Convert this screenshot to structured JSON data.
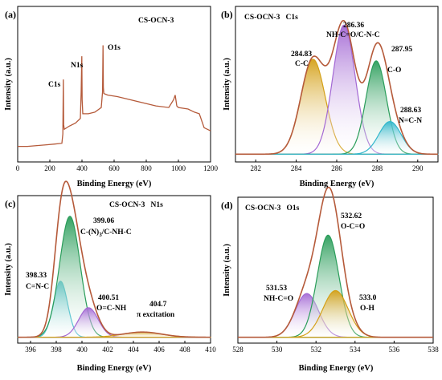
{
  "chart_data": [
    {
      "type": "line",
      "panel": "(a)",
      "title": "CS-OCN-3",
      "xlabel": "Binding Energy (eV)",
      "ylabel": "Intensity (a.u.)",
      "xlim": [
        0,
        1200
      ],
      "xticks": [
        0,
        200,
        400,
        600,
        800,
        1000,
        1200
      ],
      "ylim": [
        0,
        100
      ],
      "series": [
        {
          "color": "#b55a3a",
          "x": [
            0,
            60,
            120,
            180,
            230,
            275,
            281,
            284,
            286,
            290,
            320,
            360,
            390,
            395,
            399,
            401,
            405,
            440,
            480,
            520,
            528,
            531,
            533,
            536,
            560,
            620,
            700,
            780,
            860,
            940,
            970,
            980,
            990,
            1000,
            1060,
            1100,
            1130,
            1160,
            1200
          ],
          "y": [
            10,
            10,
            10.5,
            11,
            11.5,
            12,
            18,
            53,
            24,
            21,
            23,
            25,
            28,
            45,
            68,
            40,
            31,
            31,
            32,
            35,
            45,
            75,
            48,
            44,
            43,
            42,
            40,
            38,
            36,
            35,
            40,
            43,
            36,
            35,
            34,
            32,
            31,
            22,
            20
          ]
        }
      ],
      "annotations": [
        "C1s",
        "N1s",
        "O1s"
      ]
    },
    {
      "type": "area",
      "panel": "(b)",
      "title": "CS-OCN-3   C1s",
      "xlabel": "Binding Energy (eV)",
      "ylabel": "Intensity (a.u.)",
      "xlim": [
        281,
        291
      ],
      "xticks": [
        282,
        284,
        286,
        288,
        290
      ],
      "ylim": [
        0,
        100
      ],
      "baseline": 5,
      "envelope_color": "#b55a3a",
      "peaks": [
        {
          "center": 284.83,
          "height": 61,
          "sigma": 0.6,
          "color": "#d4a017",
          "labels": [
            "284.83",
            "C-C"
          ]
        },
        {
          "center": 286.36,
          "height": 83,
          "sigma": 0.55,
          "color": "#a368d4",
          "labels": [
            "286.36",
            "NH-C=O/C-N-C"
          ]
        },
        {
          "center": 287.95,
          "height": 60,
          "sigma": 0.5,
          "color": "#2a9d5a",
          "labels": [
            "287.95",
            "C-O"
          ]
        },
        {
          "center": 288.63,
          "height": 21,
          "sigma": 0.55,
          "color": "#33b7cc",
          "labels": [
            "288.63",
            "N=C-N"
          ]
        }
      ]
    },
    {
      "type": "area",
      "panel": "(c)",
      "title": "CS-OCN-3   N1s",
      "xlabel": "Binding Energy (eV)",
      "ylabel": "Intensity (a.u.)",
      "xlim": [
        395,
        410
      ],
      "xticks": [
        396,
        398,
        400,
        402,
        404,
        406,
        408,
        410
      ],
      "ylim": [
        0,
        100
      ],
      "baseline": 4,
      "envelope_color": "#b55a3a",
      "peaks": [
        {
          "center": 398.33,
          "height": 38,
          "sigma": 0.55,
          "color": "#33b7cc",
          "labels": [
            "398.33",
            "C=N-C"
          ]
        },
        {
          "center": 399.06,
          "height": 82,
          "sigma": 0.8,
          "color": "#2a9d5a",
          "labels": [
            "399.06",
            "C-(N)",
            "3",
            "/C-NH-C"
          ]
        },
        {
          "center": 400.51,
          "height": 20,
          "sigma": 0.75,
          "color": "#a368d4",
          "labels": [
            "400.51",
            "O=C-NH"
          ]
        },
        {
          "center": 404.7,
          "height": 3.5,
          "sigma": 1.5,
          "color": "#d4a017",
          "labels": [
            "404.7",
            "π excitation"
          ]
        }
      ]
    },
    {
      "type": "area",
      "panel": "(d)",
      "title": "CS-OCN-3   O1s",
      "xlabel": "Binding Energy (eV)",
      "ylabel": "Intensity (a.u.)",
      "xlim": [
        528,
        538
      ],
      "xticks": [
        528,
        530,
        532,
        534,
        536,
        538
      ],
      "ylim": [
        0,
        100
      ],
      "baseline": 4,
      "envelope_color": "#b55a3a",
      "peaks": [
        {
          "center": 531.53,
          "height": 30,
          "sigma": 0.6,
          "color": "#a368d4",
          "labels": [
            "531.53",
            "NH-C=O"
          ]
        },
        {
          "center": 532.62,
          "height": 70,
          "sigma": 0.55,
          "color": "#2a9d5a",
          "labels": [
            "532.62",
            "O-C=O"
          ]
        },
        {
          "center": 533.0,
          "height": 32,
          "sigma": 0.65,
          "color": "#d4a017",
          "labels": [
            "533.0",
            "O-H"
          ]
        }
      ]
    }
  ]
}
